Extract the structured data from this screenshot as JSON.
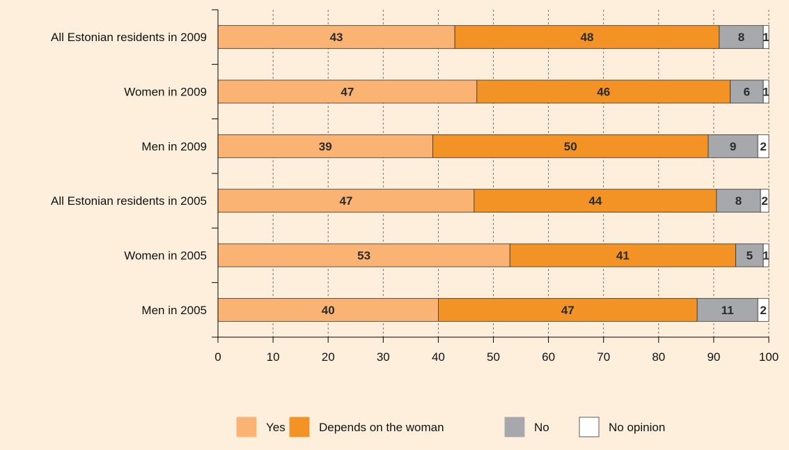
{
  "chart_data": {
    "type": "bar",
    "orientation": "horizontal",
    "stacked": true,
    "title": "",
    "xlabel": "",
    "ylabel": "",
    "xlim": [
      0,
      100
    ],
    "x_ticks": [
      0,
      10,
      20,
      30,
      40,
      50,
      60,
      70,
      80,
      90,
      100
    ],
    "grid": "vertical dashed",
    "legend_position": "bottom",
    "categories": [
      "All Estonian residents in 2009",
      "Women in 2009",
      "Men in 2009",
      "All Estonian residents in 2005",
      "Women in 2005",
      "Men in 2005"
    ],
    "series": [
      {
        "name": "Yes",
        "color": "#fbb373",
        "values": [
          43,
          47,
          39,
          47,
          53,
          40
        ]
      },
      {
        "name": "Depends on the woman",
        "color": "#f39325",
        "values": [
          48,
          46,
          50,
          44,
          41,
          47
        ]
      },
      {
        "name": "No",
        "color": "#a7a8ab",
        "values": [
          8,
          6,
          9,
          8,
          5,
          11
        ]
      },
      {
        "name": "No opinion",
        "color": "#ffffff",
        "values": [
          1,
          1,
          2,
          2,
          1,
          2
        ]
      }
    ],
    "segment_widths": [
      [
        43,
        48,
        8,
        1
      ],
      [
        47,
        46,
        6,
        1
      ],
      [
        39,
        50,
        9,
        2
      ],
      [
        46.5,
        44,
        8,
        1.5
      ],
      [
        53,
        41,
        5,
        1
      ],
      [
        40,
        47,
        11,
        2
      ]
    ]
  }
}
